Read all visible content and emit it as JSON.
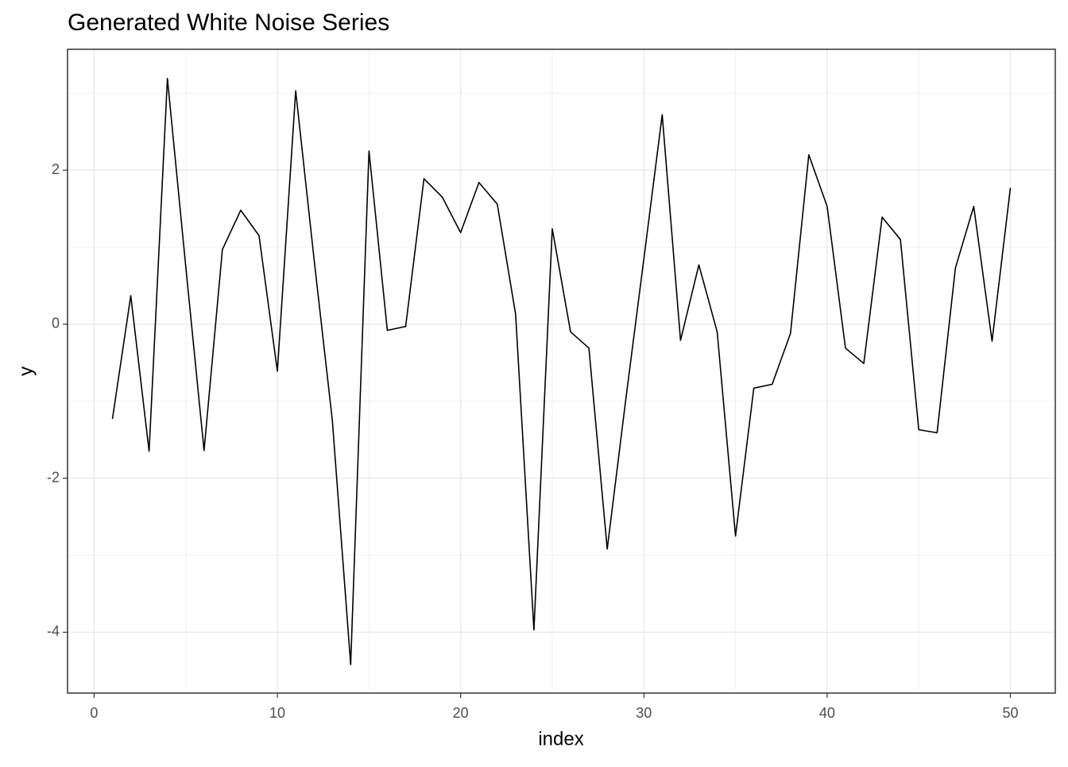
{
  "chart_data": {
    "type": "line",
    "title": "Generated White Noise Series",
    "x_label": "index",
    "y_label": "y",
    "x": [
      1,
      2,
      3,
      4,
      5,
      6,
      7,
      8,
      9,
      10,
      11,
      12,
      13,
      14,
      15,
      16,
      17,
      18,
      19,
      20,
      21,
      22,
      23,
      24,
      25,
      26,
      27,
      28,
      29,
      30,
      31,
      32,
      33,
      34,
      35,
      36,
      37,
      38,
      39,
      40,
      41,
      42,
      43,
      44,
      45,
      46,
      47,
      48,
      49,
      50
    ],
    "series": [
      {
        "name": "y",
        "color": "#000000",
        "values": [
          -1.23,
          0.37,
          -1.65,
          3.19,
          0.75,
          -1.64,
          0.97,
          1.48,
          1.15,
          -0.61,
          3.03,
          0.85,
          -1.25,
          -4.42,
          2.25,
          -0.08,
          -0.03,
          1.89,
          1.65,
          1.19,
          1.84,
          1.56,
          0.13,
          -3.97,
          1.24,
          -0.1,
          -0.31,
          -2.92,
          -1.0,
          0.85,
          2.72,
          -0.21,
          0.77,
          -0.1,
          -2.75,
          -0.83,
          -0.78,
          -0.12,
          2.2,
          1.53,
          -0.31,
          -0.51,
          1.39,
          1.1,
          -1.37,
          -1.41,
          0.73,
          1.53,
          -0.22,
          1.77
        ]
      }
    ],
    "xlim": [
      -1.45,
      52.45
    ],
    "ylim": [
      -4.79,
      3.57
    ],
    "xticks": [
      0,
      10,
      20,
      30,
      40,
      50
    ],
    "yticks": [
      -4,
      -2,
      0,
      2
    ],
    "grid": true
  }
}
